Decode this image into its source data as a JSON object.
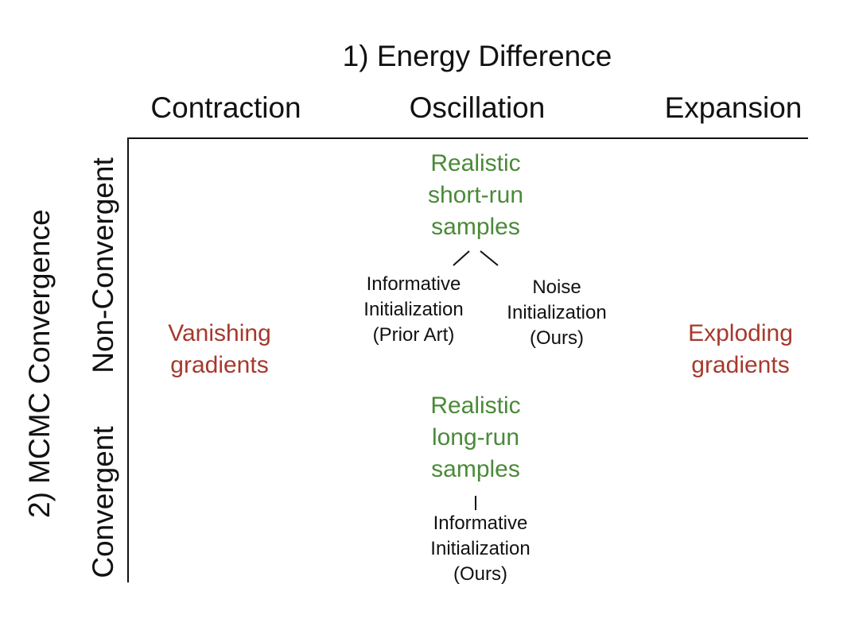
{
  "x_axis_title": "1) Energy Difference",
  "columns": [
    "Contraction",
    "Oscillation",
    "Expansion"
  ],
  "y_axis_title": "2) MCMC Convergence",
  "rows": [
    "Non-Convergent",
    "Convergent"
  ],
  "cells": {
    "vanishing": [
      "Vanishing",
      "gradients"
    ],
    "exploding": [
      "Exploding",
      "gradients"
    ],
    "short_run": [
      "Realistic",
      "short-run",
      "samples"
    ],
    "long_run": [
      "Realistic",
      "long-run",
      "samples"
    ],
    "informative_prior": [
      "Informative",
      "Initialization",
      "(Prior Art)"
    ],
    "noise_ours": [
      "Noise",
      "Initialization",
      "(Ours)"
    ],
    "informative_ours": [
      "Informative",
      "Initialization",
      "(Ours)"
    ]
  },
  "colors": {
    "positive": "#4a8a38",
    "negative": "#a6392c",
    "text": "#111111"
  }
}
